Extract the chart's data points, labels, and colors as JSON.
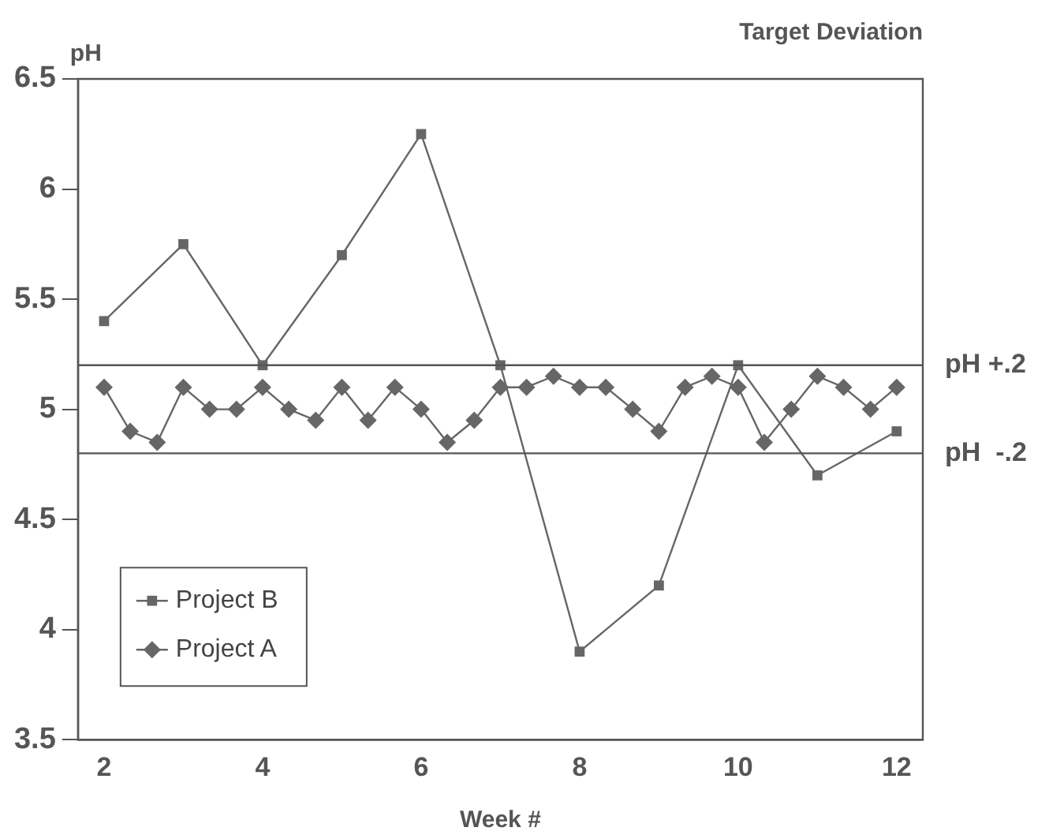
{
  "chart_data": {
    "type": "line",
    "title": "Target Deviation",
    "xlabel": "Week #",
    "ylabel": "pH",
    "xlim": [
      1.67,
      12.33
    ],
    "xticks": [
      2,
      4,
      6,
      8,
      10,
      12
    ],
    "ylim": [
      3.5,
      6.5
    ],
    "yticks": [
      3.5,
      4,
      4.5,
      5,
      5.5,
      6,
      6.5
    ],
    "grid": false,
    "legend": "bottom left",
    "series": [
      {
        "name": "Project B",
        "color": "#666666",
        "marker": "square",
        "x": [
          2,
          3,
          4,
          5,
          6,
          7,
          8,
          9,
          10,
          11,
          12
        ],
        "values": [
          5.4,
          5.75,
          5.2,
          5.7,
          6.25,
          5.2,
          3.9,
          4.2,
          5.2,
          4.7,
          4.9
        ]
      },
      {
        "name": "Project A",
        "color": "#666666",
        "marker": "diamond",
        "x": [
          2,
          2.33,
          2.67,
          3,
          3.33,
          3.67,
          4,
          4.33,
          4.67,
          5,
          5.33,
          5.67,
          6,
          6.33,
          6.67,
          7,
          7.33,
          7.67,
          8,
          8.33,
          8.67,
          9,
          9.33,
          9.67,
          10,
          10.33,
          10.67,
          11,
          11.33,
          11.67,
          12
        ],
        "values": [
          5.1,
          4.9,
          4.85,
          5.1,
          5,
          5,
          5.1,
          5,
          4.95,
          5.1,
          4.95,
          5.1,
          5,
          4.85,
          4.95,
          5.1,
          5.1,
          5.15,
          5.1,
          5.1,
          5,
          4.9,
          5.1,
          5.15,
          5.1,
          4.85,
          5,
          5.15,
          5.1,
          5,
          5.1
        ]
      }
    ],
    "ref_lines": [
      {
        "axis": "y",
        "value": 5.2,
        "label": "pH +.2",
        "color": "#555555"
      },
      {
        "axis": "y",
        "value": 4.8,
        "label": "pH  -.2",
        "color": "#555555"
      }
    ]
  }
}
